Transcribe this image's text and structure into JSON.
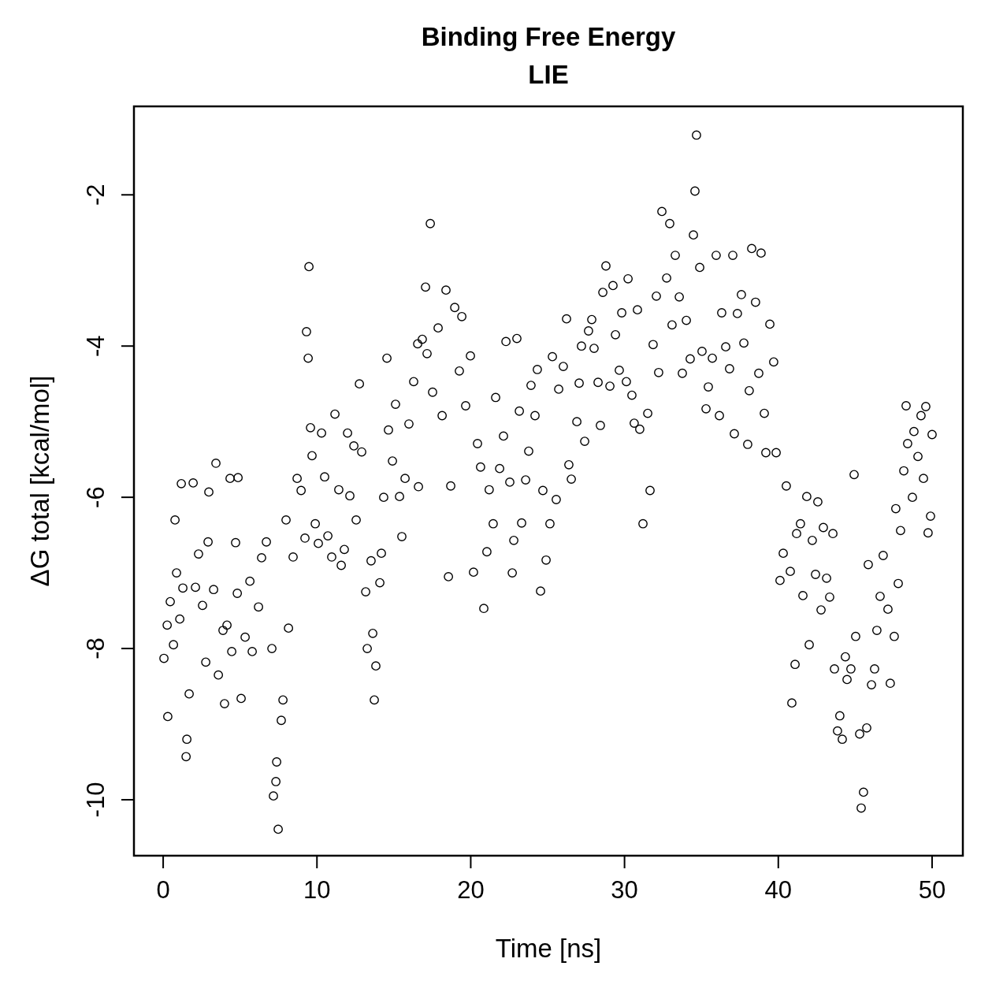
{
  "chart_data": {
    "type": "scatter",
    "title": "Binding Free Energy",
    "subtitle": "LIE",
    "xlabel": "Time [ns]",
    "ylabel": "ΔG total [kcal/mol]",
    "xlim": [
      -1.9,
      52
    ],
    "ylim": [
      -10.74,
      -0.83
    ],
    "xticks": [
      0,
      10,
      20,
      30,
      40,
      50
    ],
    "yticks": [
      -10,
      -8,
      -6,
      -4,
      -2
    ],
    "grid": false,
    "marker": "circle",
    "series": [
      {
        "color": "#000000",
        "x": [
          0.05,
          0.26,
          0.3,
          0.46,
          0.67,
          0.77,
          0.87,
          1.08,
          1.18,
          1.28,
          1.54,
          1.49,
          1.69,
          1.95,
          2.1,
          2.3,
          2.56,
          2.77,
          2.92,
          2.97,
          3.28,
          3.43,
          3.59,
          3.89,
          3.99,
          4.15,
          4.35,
          4.46,
          4.71,
          4.87,
          4.82,
          5.07,
          5.33,
          5.64,
          5.79,
          6.2,
          6.4,
          6.71,
          7.07,
          7.17,
          7.33,
          7.38,
          7.48,
          7.68,
          7.79,
          8.15,
          7.99,
          8.45,
          8.71,
          8.97,
          9.22,
          9.32,
          9.43,
          9.48,
          9.58,
          9.68,
          9.89,
          10.09,
          10.3,
          10.5,
          10.71,
          10.96,
          11.17,
          11.42,
          11.58,
          11.78,
          11.99,
          12.14,
          12.4,
          12.55,
          12.76,
          12.91,
          13.17,
          13.27,
          13.52,
          13.63,
          13.73,
          13.83,
          14.09,
          14.19,
          14.34,
          14.55,
          14.65,
          14.91,
          15.11,
          15.37,
          15.52,
          15.73,
          15.98,
          16.29,
          16.55,
          16.6,
          16.85,
          17.06,
          17.16,
          17.37,
          17.52,
          17.88,
          18.14,
          18.39,
          18.55,
          18.7,
          18.96,
          19.26,
          19.42,
          19.67,
          19.98,
          20.18,
          20.44,
          20.64,
          20.85,
          21.05,
          21.2,
          21.46,
          21.62,
          21.88,
          22.13,
          22.29,
          22.54,
          22.7,
          22.8,
          23.0,
          23.16,
          23.31,
          23.57,
          23.77,
          23.92,
          24.18,
          24.33,
          24.54,
          24.69,
          24.9,
          25.15,
          25.31,
          25.56,
          25.72,
          26.02,
          26.23,
          26.38,
          26.54,
          26.9,
          27.05,
          27.2,
          27.41,
          27.66,
          27.87,
          28.02,
          28.28,
          28.43,
          28.59,
          28.79,
          29.05,
          29.25,
          29.41,
          29.66,
          29.82,
          30.12,
          30.23,
          30.48,
          30.63,
          30.84,
          30.99,
          31.2,
          31.51,
          31.66,
          31.86,
          32.07,
          32.22,
          32.43,
          32.74,
          32.94,
          33.09,
          33.3,
          33.56,
          33.76,
          34.02,
          34.27,
          34.48,
          34.58,
          34.68,
          34.89,
          35.04,
          35.3,
          35.45,
          35.71,
          35.96,
          36.17,
          36.32,
          36.58,
          36.83,
          37.04,
          37.14,
          37.34,
          37.6,
          37.76,
          38.01,
          38.11,
          38.27,
          38.52,
          38.73,
          38.88,
          39.09,
          39.19,
          39.45,
          39.7,
          39.86,
          40.11,
          40.32,
          40.52,
          40.78,
          40.88,
          41.09,
          41.19,
          41.44,
          41.6,
          41.85,
          42.01,
          42.21,
          42.42,
          42.57,
          42.78,
          42.93,
          43.14,
          43.34,
          43.55,
          43.65,
          43.85,
          44.0,
          44.16,
          44.36,
          44.47,
          44.72,
          44.93,
          45.03,
          45.29,
          45.39,
          45.54,
          45.75,
          45.85,
          46.06,
          46.26,
          46.41,
          46.62,
          46.82,
          47.13,
          47.28,
          47.54,
          47.64,
          47.8,
          47.95,
          48.16,
          48.31,
          48.41,
          48.72,
          48.82,
          49.08,
          49.28,
          49.44,
          49.59,
          49.74,
          49.9,
          50.0
        ],
        "values": [
          -8.13,
          -7.69,
          -8.9,
          -7.38,
          -7.95,
          -6.3,
          -7.0,
          -7.61,
          -5.82,
          -7.2,
          -9.2,
          -9.43,
          -8.6,
          -5.81,
          -7.19,
          -6.75,
          -7.43,
          -8.18,
          -6.59,
          -5.93,
          -7.22,
          -5.55,
          -8.35,
          -7.76,
          -8.73,
          -7.69,
          -5.75,
          -8.04,
          -6.6,
          -5.74,
          -7.27,
          -8.66,
          -7.85,
          -7.11,
          -8.04,
          -7.45,
          -6.8,
          -6.59,
          -8.0,
          -9.95,
          -9.76,
          -9.5,
          -10.39,
          -8.95,
          -8.68,
          -7.73,
          -6.3,
          -6.79,
          -5.75,
          -5.91,
          -6.54,
          -3.81,
          -4.16,
          -2.95,
          -5.08,
          -5.45,
          -6.35,
          -6.61,
          -5.15,
          -5.73,
          -6.51,
          -6.79,
          -4.9,
          -5.9,
          -6.9,
          -6.69,
          -5.15,
          -5.98,
          -5.32,
          -6.3,
          -4.5,
          -5.4,
          -7.25,
          -8.0,
          -6.84,
          -7.8,
          -8.68,
          -8.23,
          -7.13,
          -6.74,
          -6.0,
          -4.16,
          -5.11,
          -5.52,
          -4.77,
          -5.99,
          -6.52,
          -5.75,
          -5.03,
          -4.47,
          -3.97,
          -5.86,
          -3.91,
          -3.22,
          -4.1,
          -2.38,
          -4.61,
          -3.76,
          -4.92,
          -3.26,
          -7.05,
          -5.85,
          -3.49,
          -4.33,
          -3.61,
          -4.79,
          -4.13,
          -6.99,
          -5.29,
          -5.6,
          -7.47,
          -6.72,
          -5.9,
          -6.35,
          -4.68,
          -5.62,
          -5.19,
          -3.94,
          -5.8,
          -7.0,
          -6.57,
          -3.9,
          -4.86,
          -6.34,
          -5.77,
          -5.39,
          -4.52,
          -4.92,
          -4.31,
          -7.24,
          -5.91,
          -6.83,
          -6.35,
          -4.14,
          -6.03,
          -4.57,
          -4.27,
          -3.64,
          -5.57,
          -5.76,
          -5.0,
          -4.49,
          -4.0,
          -5.26,
          -3.8,
          -3.65,
          -4.03,
          -4.48,
          -5.05,
          -3.29,
          -2.94,
          -4.53,
          -3.2,
          -3.85,
          -4.32,
          -3.56,
          -4.47,
          -3.11,
          -4.65,
          -5.02,
          -3.52,
          -5.1,
          -6.35,
          -4.89,
          -5.91,
          -3.98,
          -3.34,
          -4.35,
          -2.22,
          -3.1,
          -2.38,
          -3.72,
          -2.8,
          -3.35,
          -4.36,
          -3.66,
          -4.17,
          -2.53,
          -1.95,
          -1.21,
          -2.96,
          -4.07,
          -4.83,
          -4.54,
          -4.16,
          -2.8,
          -4.92,
          -3.56,
          -4.01,
          -4.3,
          -2.8,
          -5.16,
          -3.57,
          -3.32,
          -3.96,
          -5.3,
          -4.59,
          -2.71,
          -3.42,
          -4.36,
          -2.77,
          -4.89,
          -5.41,
          -3.71,
          -4.21,
          -5.41,
          -7.1,
          -6.74,
          -5.85,
          -6.98,
          -8.72,
          -8.21,
          -6.48,
          -6.35,
          -7.3,
          -5.99,
          -7.95,
          -6.57,
          -7.02,
          -6.06,
          -7.49,
          -6.4,
          -7.07,
          -7.32,
          -6.48,
          -8.27,
          -9.09,
          -8.89,
          -9.2,
          -8.11,
          -8.41,
          -8.27,
          -5.7,
          -7.84,
          -9.13,
          -10.11,
          -9.9,
          -9.05,
          -6.89,
          -8.48,
          -8.27,
          -7.76,
          -7.31,
          -6.77,
          -7.48,
          -8.46,
          -7.84,
          -6.15,
          -7.14,
          -6.44,
          -5.65,
          -4.79,
          -5.29,
          -6.0,
          -5.13,
          -5.46,
          -4.92,
          -5.75,
          -4.8,
          -6.47,
          -6.25,
          -5.17
        ]
      }
    ]
  }
}
